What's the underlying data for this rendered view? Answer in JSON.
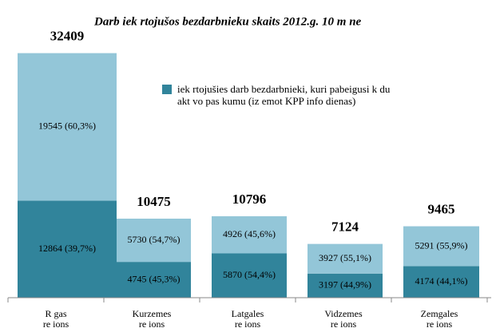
{
  "chart_data": {
    "type": "stacked_bar",
    "title": "Darb  iek rtojušos bezdarbnieku skaits 2012.g. 10 m  ne",
    "categories": [
      "R gas\nre ions",
      "Kurzemes\nre ions",
      "Latgales\nre ions",
      "Vidzemes\nre ions",
      "Zemgales\nre ions"
    ],
    "series": [
      {
        "name": "iek rtojušies darb  bezdarbnieki, kuri pabeigusi k  du\nakt vo pas kumu (iz emot KPP info dienas)",
        "color": "#31849b",
        "values": [
          12864,
          4745,
          5870,
          3197,
          4174
        ],
        "value_labels": [
          "12864 (39,7%)",
          "4745 (45,3%)",
          "5870 (54,4%)",
          "3197 (44,9%)",
          "4174 (44,1%)"
        ]
      },
      {
        "color": "#93c6d8",
        "values": [
          19545,
          5730,
          4926,
          3927,
          5291
        ],
        "value_labels": [
          "19545 (60,3%)",
          "5730 (54,7%)",
          "4926 (45,6%)",
          "3927  (55,1%)",
          "5291 (55,9%)"
        ]
      }
    ],
    "totals": [
      32409,
      10475,
      10796,
      7124,
      9465
    ],
    "ylim": [
      0,
      33000
    ]
  }
}
